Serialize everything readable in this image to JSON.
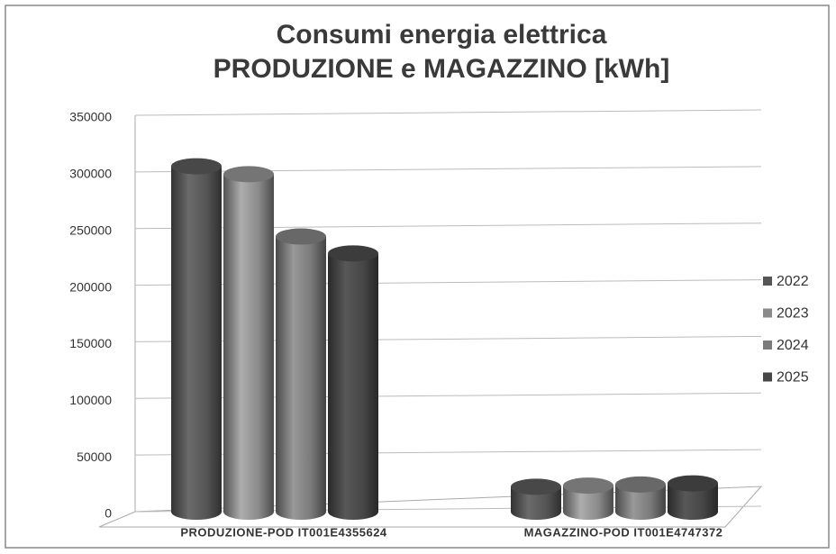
{
  "chart_data": {
    "type": "bar3d",
    "title": [
      "Consumi energia elettrica",
      "PRODUZIONE e MAGAZZINO [kWh]"
    ],
    "categories": [
      "PRODUZIONE-POD IT001E4355624",
      "MAGAZZINO-POD IT001E4747372"
    ],
    "series": [
      {
        "name": "2022",
        "color": "#555555",
        "values": [
          305000,
          22000
        ]
      },
      {
        "name": "2023",
        "color": "#8a8a8a",
        "values": [
          298000,
          23000
        ]
      },
      {
        "name": "2024",
        "color": "#7a7a7a",
        "values": [
          243000,
          24000
        ]
      },
      {
        "name": "2025",
        "color": "#464646",
        "values": [
          228000,
          25000
        ]
      }
    ],
    "ylim": [
      0,
      350000
    ],
    "yticks": [
      0,
      50000,
      100000,
      150000,
      200000,
      250000,
      300000,
      350000
    ],
    "grid": true,
    "legend": "right"
  }
}
